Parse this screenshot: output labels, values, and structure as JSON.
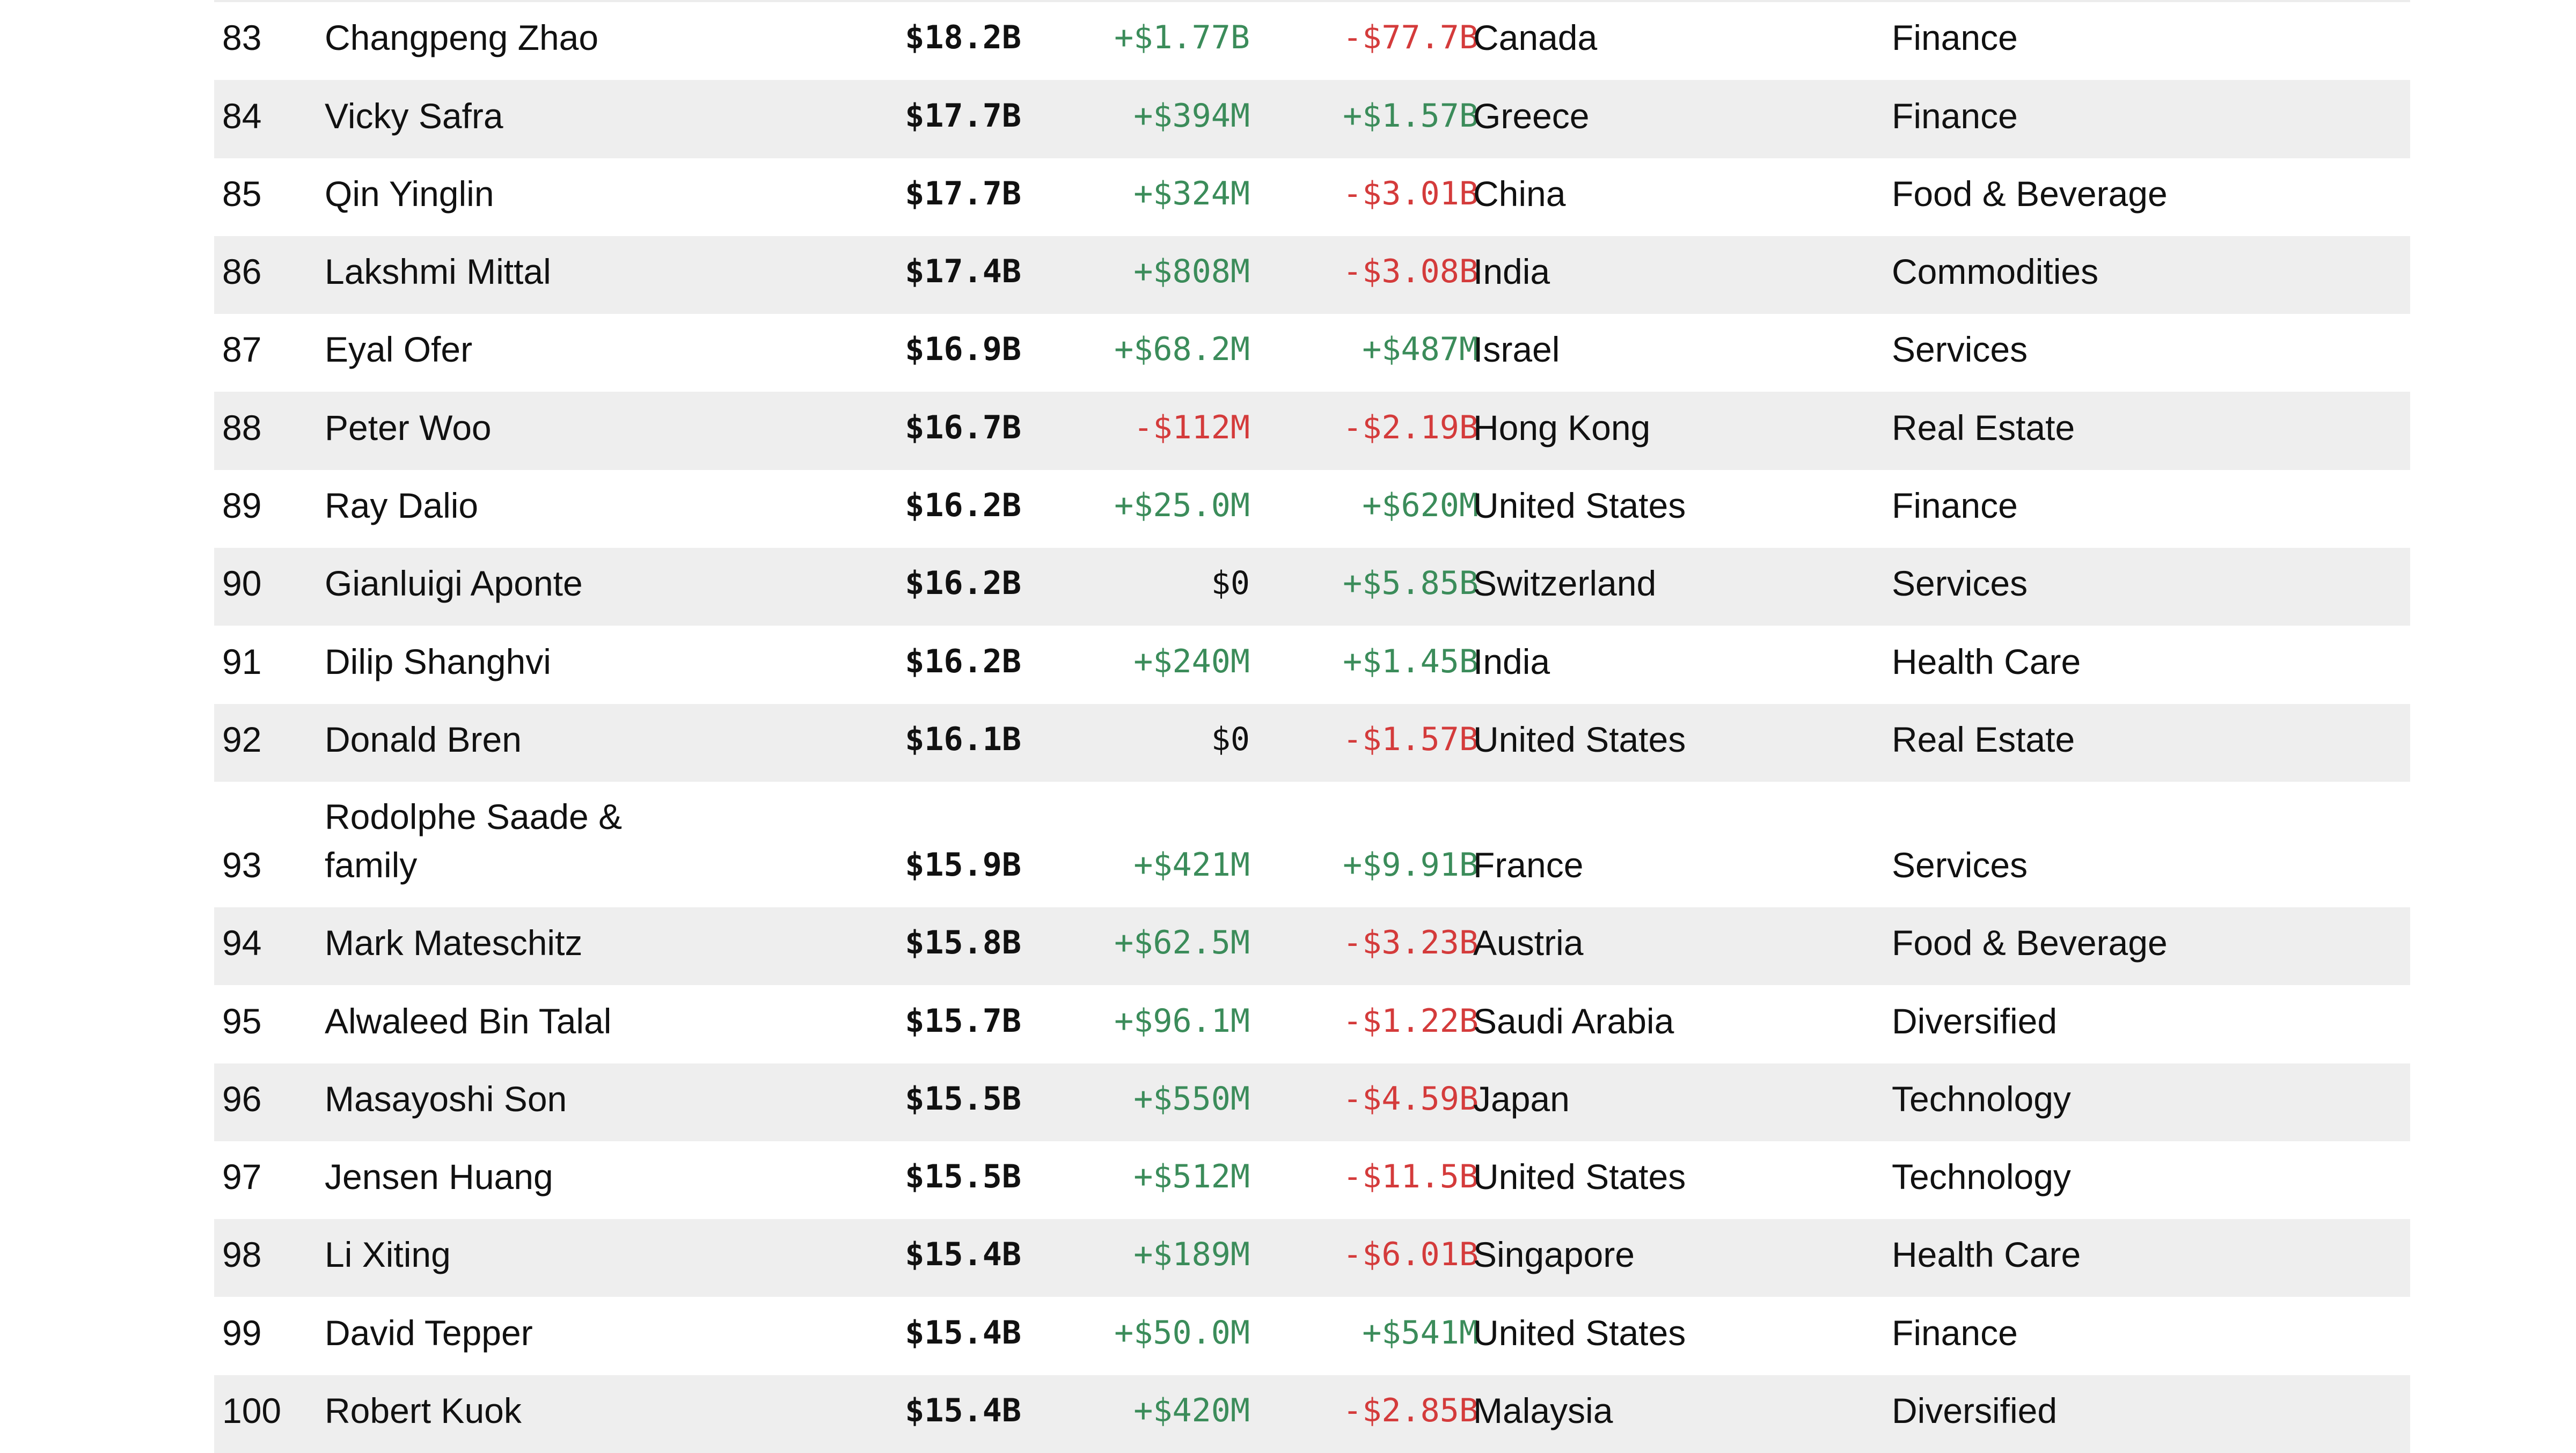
{
  "colors": {
    "positive": "#3b8c5a",
    "negative": "#d43b3b",
    "alt_row_background": "#eeeeee"
  },
  "rows": [
    {
      "rank": "83",
      "name": "Changpeng Zhao",
      "net_worth": "$18.2B",
      "last_change": "+$1.77B",
      "ytd_change": "-$77.7B",
      "country": "Canada",
      "industry": "Finance"
    },
    {
      "rank": "84",
      "name": "Vicky Safra",
      "net_worth": "$17.7B",
      "last_change": "+$394M",
      "ytd_change": "+$1.57B",
      "country": "Greece",
      "industry": "Finance"
    },
    {
      "rank": "85",
      "name": "Qin Yinglin",
      "net_worth": "$17.7B",
      "last_change": "+$324M",
      "ytd_change": "-$3.01B",
      "country": "China",
      "industry": "Food & Beverage"
    },
    {
      "rank": "86",
      "name": "Lakshmi Mittal",
      "net_worth": "$17.4B",
      "last_change": "+$808M",
      "ytd_change": "-$3.08B",
      "country": "India",
      "industry": "Commodities"
    },
    {
      "rank": "87",
      "name": "Eyal Ofer",
      "net_worth": "$16.9B",
      "last_change": "+$68.2M",
      "ytd_change": "+$487M",
      "country": "Israel",
      "industry": "Services"
    },
    {
      "rank": "88",
      "name": "Peter Woo",
      "net_worth": "$16.7B",
      "last_change": "-$112M",
      "ytd_change": "-$2.19B",
      "country": "Hong Kong",
      "industry": "Real Estate"
    },
    {
      "rank": "89",
      "name": "Ray Dalio",
      "net_worth": "$16.2B",
      "last_change": "+$25.0M",
      "ytd_change": "+$620M",
      "country": "United States",
      "industry": "Finance"
    },
    {
      "rank": "90",
      "name": "Gianluigi Aponte",
      "net_worth": "$16.2B",
      "last_change": "$0",
      "ytd_change": "+$5.85B",
      "country": "Switzerland",
      "industry": "Services"
    },
    {
      "rank": "91",
      "name": "Dilip Shanghvi",
      "net_worth": "$16.2B",
      "last_change": "+$240M",
      "ytd_change": "+$1.45B",
      "country": "India",
      "industry": "Health Care"
    },
    {
      "rank": "92",
      "name": "Donald Bren",
      "net_worth": "$16.1B",
      "last_change": "$0",
      "ytd_change": "-$1.57B",
      "country": "United States",
      "industry": "Real Estate"
    },
    {
      "rank": "93",
      "name": "Rodolphe Saade & family",
      "net_worth": "$15.9B",
      "last_change": "+$421M",
      "ytd_change": "+$9.91B",
      "country": "France",
      "industry": "Services"
    },
    {
      "rank": "94",
      "name": "Mark Mateschitz",
      "net_worth": "$15.8B",
      "last_change": "+$62.5M",
      "ytd_change": "-$3.23B",
      "country": "Austria",
      "industry": "Food & Beverage"
    },
    {
      "rank": "95",
      "name": "Alwaleed Bin Talal",
      "net_worth": "$15.7B",
      "last_change": "+$96.1M",
      "ytd_change": "-$1.22B",
      "country": "Saudi Arabia",
      "industry": "Diversified"
    },
    {
      "rank": "96",
      "name": "Masayoshi Son",
      "net_worth": "$15.5B",
      "last_change": "+$550M",
      "ytd_change": "-$4.59B",
      "country": "Japan",
      "industry": "Technology"
    },
    {
      "rank": "97",
      "name": "Jensen Huang",
      "net_worth": "$15.5B",
      "last_change": "+$512M",
      "ytd_change": "-$11.5B",
      "country": "United States",
      "industry": "Technology"
    },
    {
      "rank": "98",
      "name": "Li Xiting",
      "net_worth": "$15.4B",
      "last_change": "+$189M",
      "ytd_change": "-$6.01B",
      "country": "Singapore",
      "industry": "Health Care"
    },
    {
      "rank": "99",
      "name": "David Tepper",
      "net_worth": "$15.4B",
      "last_change": "+$50.0M",
      "ytd_change": "+$541M",
      "country": "United States",
      "industry": "Finance"
    },
    {
      "rank": "100",
      "name": "Robert Kuok",
      "net_worth": "$15.4B",
      "last_change": "+$420M",
      "ytd_change": "-$2.85B",
      "country": "Malaysia",
      "industry": "Diversified"
    }
  ]
}
